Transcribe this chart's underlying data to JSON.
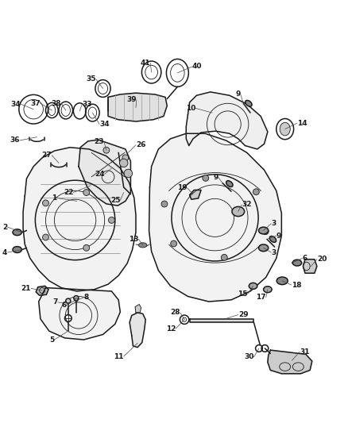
{
  "background_color": "#ffffff",
  "line_color": "#1a1a1a",
  "label_color": "#1a1a1a",
  "lw_main": 1.1,
  "lw_thin": 0.6,
  "label_fontsize": 6.5
}
